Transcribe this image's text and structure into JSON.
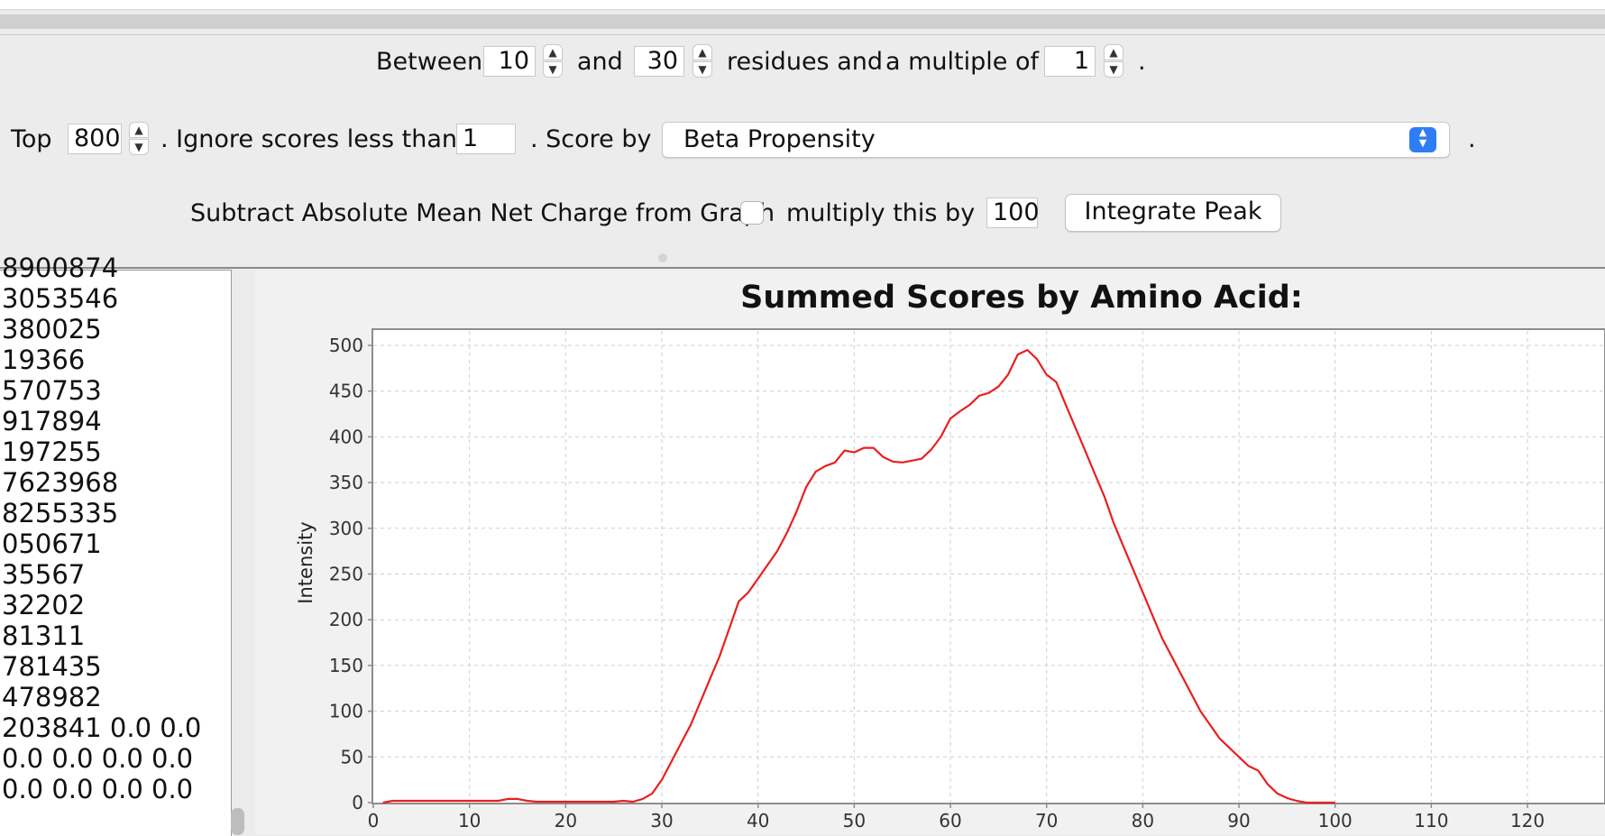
{
  "controls": {
    "between_label": "Between",
    "min_residues": "10",
    "and_label": "and",
    "max_residues": "30",
    "residues_and_label": "residues and",
    "multiple_label": "a multiple of",
    "multiple_value": "1",
    "period": ".",
    "top_label": "Top",
    "top_value": "800",
    "ignore_label": ". Ignore scores less than",
    "ignore_value": "1",
    "score_by_label": ". Score by",
    "score_by_value": "Beta Propensity",
    "subtract_label": "Subtract Absolute Mean Net Charge from Graph",
    "subtract_checked": false,
    "multiply_label": "multiply this by",
    "multiply_value": "100",
    "integrate_button": "Integrate Peak"
  },
  "results_text": [
    "8900874",
    "3053546",
    "380025",
    "19366",
    "570753",
    "917894",
    "197255",
    "7623968",
    "8255335",
    "050671",
    "35567",
    "32202",
    "81311",
    "781435",
    "478982",
    "203841 0.0 0.0",
    " 0.0 0.0 0.0 0.0",
    " 0.0 0.0 0.0 0.0"
  ],
  "chart_data": {
    "type": "line",
    "title": "Summed Scores by Amino Acid:",
    "xlabel": "",
    "ylabel": "Intensity",
    "xlim": [
      0,
      128
    ],
    "ylim": [
      0,
      520
    ],
    "x_ticks": [
      0,
      10,
      20,
      30,
      40,
      50,
      60,
      70,
      80,
      90,
      100,
      110,
      120
    ],
    "y_ticks": [
      0,
      50,
      100,
      150,
      200,
      250,
      300,
      350,
      400,
      450,
      500
    ],
    "grid": true,
    "series_color": "#e8201e",
    "series": [
      {
        "x": [
          1,
          2,
          5,
          8,
          10,
          12,
          13,
          14,
          15,
          16,
          17,
          20,
          23,
          25,
          26,
          27,
          28,
          29,
          30,
          31,
          32,
          33,
          34,
          35,
          36,
          37,
          38,
          39,
          40,
          41,
          42,
          43,
          44,
          45,
          46,
          47,
          48,
          49,
          50,
          51,
          52,
          53,
          54,
          55,
          56,
          57,
          58,
          59,
          60,
          61,
          62,
          63,
          64,
          65,
          66,
          67,
          68,
          69,
          70,
          71,
          72,
          73,
          74,
          75,
          76,
          77,
          78,
          79,
          80,
          81,
          82,
          83,
          84,
          85,
          86,
          87,
          88,
          89,
          90,
          91,
          92,
          93,
          94,
          95,
          96,
          97,
          98,
          99,
          100
        ],
        "y": [
          0,
          2,
          2,
          2,
          2,
          2,
          2,
          4,
          4,
          2,
          1,
          1,
          1,
          1,
          2,
          1,
          4,
          10,
          25,
          45,
          65,
          85,
          110,
          135,
          160,
          190,
          220,
          230,
          245,
          260,
          275,
          295,
          318,
          345,
          362,
          368,
          372,
          385,
          383,
          388,
          388,
          378,
          373,
          372,
          374,
          376,
          386,
          400,
          420,
          428,
          435,
          445,
          448,
          455,
          468,
          490,
          495,
          485,
          468,
          460,
          435,
          410,
          385,
          360,
          335,
          305,
          280,
          255,
          230,
          205,
          180,
          160,
          140,
          120,
          100,
          85,
          70,
          60,
          50,
          40,
          35,
          20,
          10,
          5,
          2,
          0,
          0,
          0,
          0
        ]
      }
    ]
  }
}
